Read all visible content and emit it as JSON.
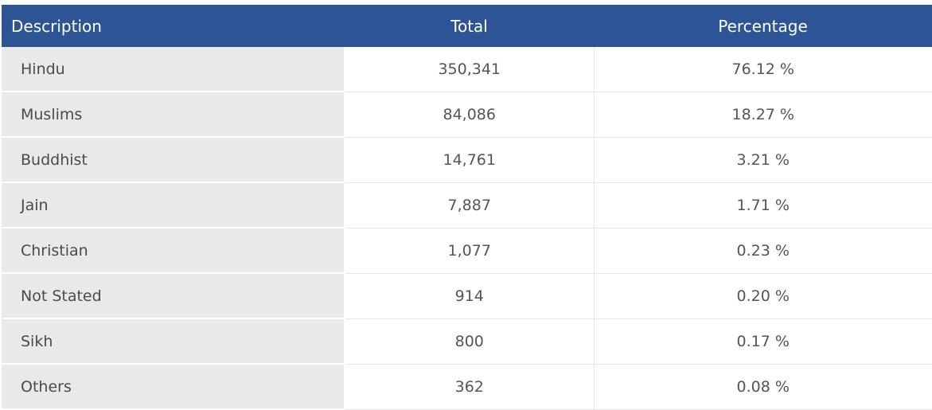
{
  "table": {
    "headers": {
      "description": "Description",
      "total": "Total",
      "percentage": "Percentage"
    },
    "rows": [
      {
        "description": "Hindu",
        "total": "350,341",
        "percentage": "76.12 %"
      },
      {
        "description": "Muslims",
        "total": "84,086",
        "percentage": "18.27 %"
      },
      {
        "description": "Buddhist",
        "total": "14,761",
        "percentage": "3.21 %"
      },
      {
        "description": "Jain",
        "total": "7,887",
        "percentage": "1.71 %"
      },
      {
        "description": "Christian",
        "total": "1,077",
        "percentage": "0.23 %"
      },
      {
        "description": "Not Stated",
        "total": "914",
        "percentage": "0.20 %"
      },
      {
        "description": "Sikh",
        "total": "800",
        "percentage": "0.17 %"
      },
      {
        "description": "Others",
        "total": "362",
        "percentage": "0.08 %"
      }
    ]
  },
  "colors": {
    "header_background": "#2d5596",
    "header_text": "#ffffff",
    "description_cell_background": "#e9e9e9",
    "body_text": "#555555"
  }
}
